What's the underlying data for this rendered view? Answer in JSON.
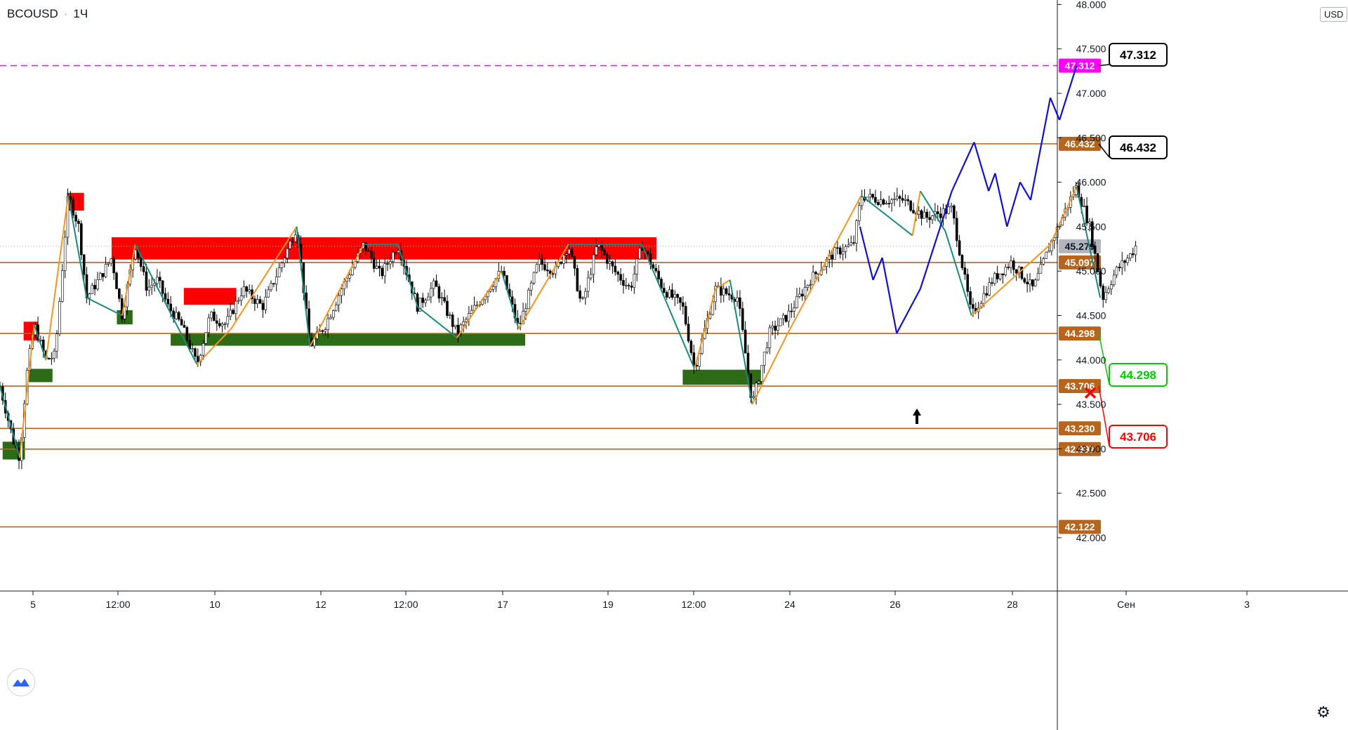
{
  "header": {
    "symbol": "BCOUSD",
    "separator": "·",
    "interval": "1Ч"
  },
  "currency": "USD",
  "colors": {
    "level": "#b5651d",
    "dashed": "#ff00ff",
    "red_zone": "#ff0000",
    "green_zone": "#2e6b17",
    "zigzag_up": "#f5941e",
    "zigzag_down": "#1a8a80",
    "forecast": "#1010d0",
    "callout_green": "#00cc00",
    "callout_red": "#ff0000",
    "current_price_tag": "#b2b5be"
  },
  "icons": {
    "logo": "tradingview-logo-icon",
    "settings": "gear-icon",
    "up_arrow": "arrow-up-icon",
    "stop": "x-mark-icon"
  },
  "chart_data": {
    "type": "candlestick",
    "yaxis": {
      "ylim": [
        41.4,
        48.05
      ],
      "ticks": [
        "42.000",
        "42.500",
        "43.000",
        "43.500",
        "44.000",
        "44.500",
        "45.000",
        "45.500",
        "46.000",
        "46.500",
        "47.000",
        "47.500",
        "48.000"
      ]
    },
    "xaxis": {
      "ticks": [
        "5",
        "12:00",
        "10",
        "12",
        "12:00",
        "17",
        "19",
        "12:00",
        "24",
        "26",
        "28",
        "Сен",
        "3"
      ]
    },
    "levels": [
      {
        "value": 47.312,
        "label": "47.312",
        "style": "dashed"
      },
      {
        "value": 46.432,
        "label": "46.432",
        "style": "solid"
      },
      {
        "value": 45.097,
        "label": "45.097",
        "style": "solid"
      },
      {
        "value": 44.298,
        "label": "44.298",
        "style": "solid"
      },
      {
        "value": 43.706,
        "label": "43.706",
        "style": "solid"
      },
      {
        "value": 43.23,
        "label": "43.230",
        "style": "solid"
      },
      {
        "value": 42.997,
        "label": "42.997",
        "style": "solid"
      },
      {
        "value": 42.122,
        "label": "42.122",
        "style": "solid"
      }
    ],
    "current_price": {
      "value": 45.279,
      "label": "45.279"
    },
    "callouts": [
      {
        "label": "47.312",
        "value": 47.312,
        "color": "black"
      },
      {
        "label": "46.432",
        "value": 46.432,
        "color": "black"
      },
      {
        "label": "44.298",
        "value": 44.298,
        "color": "green"
      },
      {
        "label": "43.706",
        "value": 43.706,
        "color": "red"
      }
    ],
    "zones": [
      {
        "type": "supply",
        "top": 45.38,
        "bottom": 45.13,
        "from": 0.085,
        "to": 0.5
      },
      {
        "type": "supply",
        "top": 44.81,
        "bottom": 44.62,
        "from": 0.14,
        "to": 0.18
      },
      {
        "type": "supply",
        "top": 45.88,
        "bottom": 45.68,
        "from": 0.051,
        "to": 0.064
      },
      {
        "type": "supply",
        "top": 44.43,
        "bottom": 44.22,
        "from": 0.018,
        "to": 0.029
      },
      {
        "type": "demand",
        "top": 44.3,
        "bottom": 44.16,
        "from": 0.13,
        "to": 0.4
      },
      {
        "type": "demand",
        "top": 44.56,
        "bottom": 44.4,
        "from": 0.089,
        "to": 0.101
      },
      {
        "type": "demand",
        "top": 43.9,
        "bottom": 43.75,
        "from": 0.022,
        "to": 0.04
      },
      {
        "type": "demand",
        "top": 43.89,
        "bottom": 43.72,
        "from": 0.52,
        "to": 0.58
      },
      {
        "type": "demand",
        "top": 43.08,
        "bottom": 42.88,
        "from": 0.002,
        "to": 0.019
      }
    ],
    "price_path": [
      [
        0.0,
        43.7
      ],
      [
        0.01,
        43.1
      ],
      [
        0.015,
        42.9
      ],
      [
        0.02,
        43.8
      ],
      [
        0.026,
        44.4
      ],
      [
        0.035,
        44.0
      ],
      [
        0.042,
        44.05
      ],
      [
        0.052,
        45.85
      ],
      [
        0.06,
        45.5
      ],
      [
        0.066,
        44.7
      ],
      [
        0.075,
        44.9
      ],
      [
        0.085,
        45.15
      ],
      [
        0.093,
        44.5
      ],
      [
        0.103,
        45.3
      ],
      [
        0.112,
        44.8
      ],
      [
        0.12,
        44.9
      ],
      [
        0.128,
        44.6
      ],
      [
        0.138,
        44.4
      ],
      [
        0.15,
        43.95
      ],
      [
        0.16,
        44.5
      ],
      [
        0.172,
        44.4
      ],
      [
        0.185,
        44.8
      ],
      [
        0.2,
        44.6
      ],
      [
        0.212,
        45.0
      ],
      [
        0.226,
        45.5
      ],
      [
        0.236,
        44.15
      ],
      [
        0.248,
        44.4
      ],
      [
        0.26,
        44.8
      ],
      [
        0.277,
        45.3
      ],
      [
        0.29,
        44.95
      ],
      [
        0.303,
        45.3
      ],
      [
        0.318,
        44.6
      ],
      [
        0.331,
        44.85
      ],
      [
        0.348,
        44.3
      ],
      [
        0.367,
        44.7
      ],
      [
        0.382,
        45.0
      ],
      [
        0.395,
        44.35
      ],
      [
        0.41,
        45.1
      ],
      [
        0.423,
        45.0
      ],
      [
        0.433,
        45.3
      ],
      [
        0.443,
        44.6
      ],
      [
        0.455,
        45.3
      ],
      [
        0.468,
        45.0
      ],
      [
        0.48,
        44.8
      ],
      [
        0.489,
        45.3
      ],
      [
        0.505,
        44.8
      ],
      [
        0.52,
        44.6
      ],
      [
        0.529,
        43.9
      ],
      [
        0.545,
        44.8
      ],
      [
        0.562,
        44.7
      ],
      [
        0.573,
        43.5
      ],
      [
        0.586,
        44.3
      ],
      [
        0.6,
        44.5
      ],
      [
        0.617,
        44.9
      ],
      [
        0.635,
        45.2
      ],
      [
        0.65,
        45.3
      ],
      [
        0.656,
        45.85
      ],
      [
        0.67,
        45.8
      ],
      [
        0.688,
        45.8
      ],
      [
        0.705,
        45.6
      ],
      [
        0.725,
        45.7
      ],
      [
        0.74,
        44.5
      ],
      [
        0.756,
        44.9
      ],
      [
        0.77,
        45.1
      ],
      [
        0.787,
        44.8
      ],
      [
        0.8,
        45.3
      ],
      [
        0.815,
        45.8
      ],
      [
        0.82,
        45.95
      ],
      [
        0.83,
        45.5
      ],
      [
        0.84,
        44.7
      ],
      [
        0.85,
        45.0
      ],
      [
        0.862,
        45.2
      ],
      [
        0.865,
        45.28
      ]
    ],
    "zigzag": [
      [
        0.0,
        43.7
      ],
      [
        0.015,
        42.9
      ],
      [
        0.026,
        44.4
      ],
      [
        0.035,
        44.0
      ],
      [
        0.052,
        45.85
      ],
      [
        0.066,
        44.7
      ],
      [
        0.093,
        44.5
      ],
      [
        0.103,
        45.3
      ],
      [
        0.15,
        43.95
      ],
      [
        0.176,
        44.35
      ],
      [
        0.226,
        45.5
      ],
      [
        0.236,
        44.15
      ],
      [
        0.277,
        45.3
      ],
      [
        0.303,
        45.3
      ],
      [
        0.318,
        44.6
      ],
      [
        0.348,
        44.25
      ],
      [
        0.382,
        45.0
      ],
      [
        0.395,
        44.35
      ],
      [
        0.433,
        45.3
      ],
      [
        0.455,
        45.3
      ],
      [
        0.489,
        45.3
      ],
      [
        0.529,
        43.9
      ],
      [
        0.545,
        44.8
      ],
      [
        0.556,
        44.9
      ],
      [
        0.573,
        43.5
      ],
      [
        0.6,
        44.3
      ],
      [
        0.656,
        45.85
      ],
      [
        0.695,
        45.4
      ],
      [
        0.701,
        45.9
      ],
      [
        0.72,
        45.45
      ],
      [
        0.74,
        44.5
      ],
      [
        0.8,
        45.3
      ],
      [
        0.82,
        45.95
      ],
      [
        0.838,
        44.7
      ]
    ],
    "forecast": [
      [
        0.655,
        45.5
      ],
      [
        0.665,
        44.9
      ],
      [
        0.672,
        45.15
      ],
      [
        0.683,
        44.3
      ],
      [
        0.701,
        44.8
      ],
      [
        0.725,
        45.9
      ],
      [
        0.742,
        46.45
      ],
      [
        0.753,
        45.9
      ],
      [
        0.758,
        46.1
      ],
      [
        0.767,
        45.5
      ],
      [
        0.777,
        46.0
      ],
      [
        0.785,
        45.8
      ],
      [
        0.8,
        46.95
      ],
      [
        0.807,
        46.7
      ],
      [
        0.82,
        47.31
      ]
    ]
  }
}
